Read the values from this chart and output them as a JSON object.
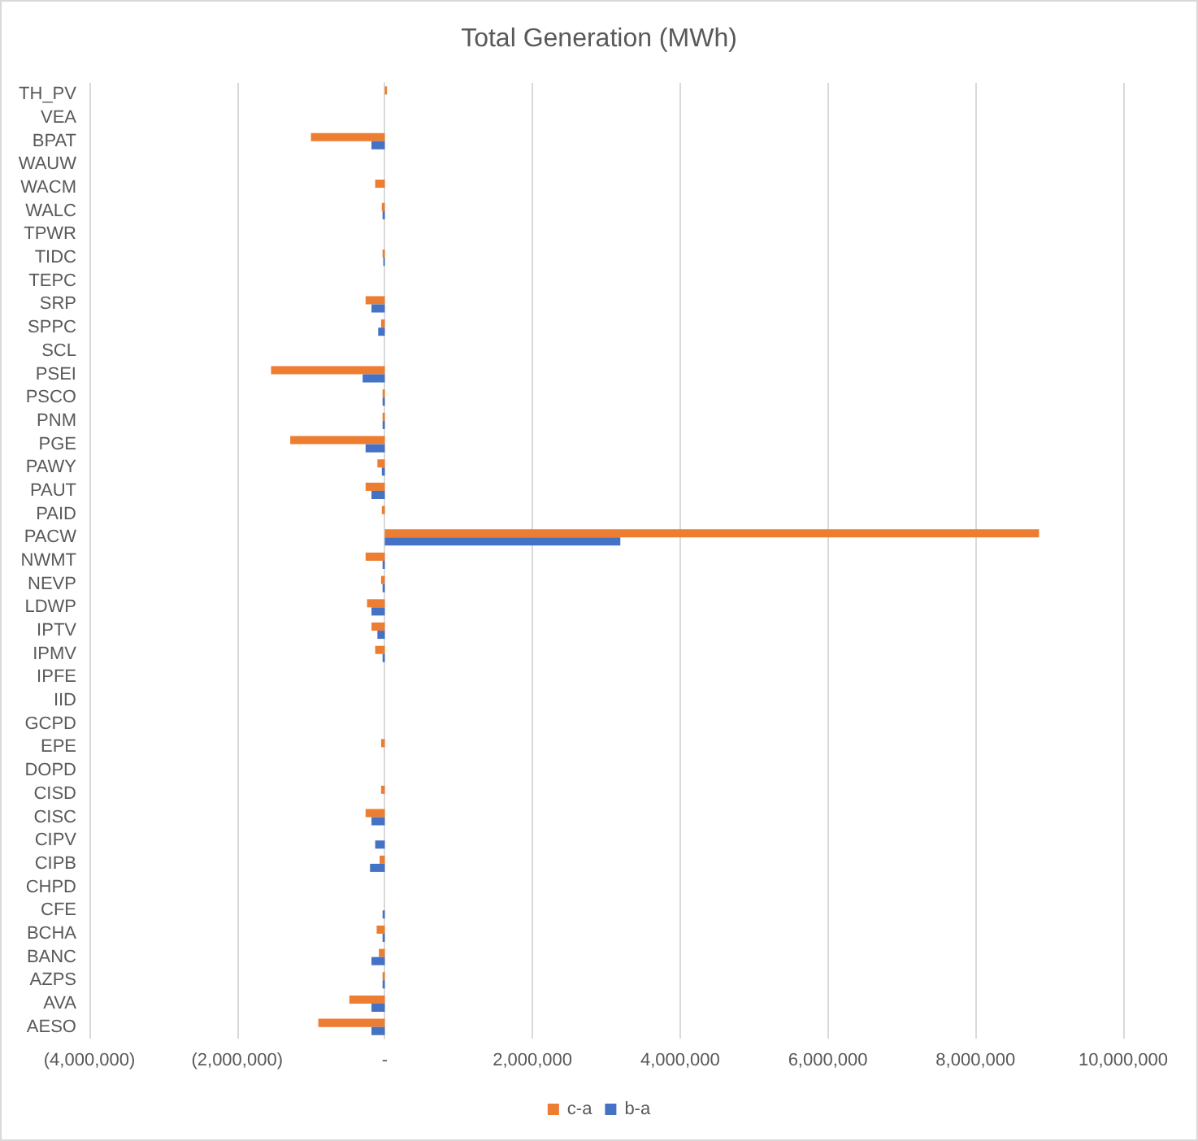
{
  "chart_data": {
    "type": "bar",
    "orientation": "horizontal",
    "title": "Total Generation (MWh)",
    "categories": [
      "TH_PV",
      "VEA",
      "BPAT",
      "WAUW",
      "WACM",
      "WALC",
      "TPWR",
      "TIDC",
      "TEPC",
      "SRP",
      "SPPC",
      "SCL",
      "PSEI",
      "PSCO",
      "PNM",
      "PGE",
      "PAWY",
      "PAUT",
      "PAID",
      "PACW",
      "NWMT",
      "NEVP",
      "LDWP",
      "IPTV",
      "IPMV",
      "IPFE",
      "IID",
      "GCPD",
      "EPE",
      "DOPD",
      "CISD",
      "CISC",
      "CIPV",
      "CIPB",
      "CHPD",
      "CFE",
      "BCHA",
      "BANC",
      "AZPS",
      "AVA",
      "AESO"
    ],
    "series": [
      {
        "name": "c-a",
        "color": "#ed7d31",
        "values": [
          30000,
          0,
          -1000000,
          0,
          -130000,
          -40000,
          0,
          -30000,
          0,
          -260000,
          -50000,
          0,
          -1540000,
          -30000,
          -30000,
          -1280000,
          -100000,
          -260000,
          -40000,
          8860000,
          -260000,
          -50000,
          -240000,
          -180000,
          -130000,
          0,
          0,
          0,
          -50000,
          0,
          -50000,
          -260000,
          0,
          -70000,
          0,
          0,
          -110000,
          -80000,
          -30000,
          -480000,
          -900000
        ]
      },
      {
        "name": "b-a",
        "color": "#4472c4",
        "values": [
          0,
          0,
          -180000,
          0,
          0,
          -30000,
          0,
          -20000,
          0,
          -180000,
          -90000,
          0,
          -300000,
          -30000,
          -30000,
          -260000,
          -40000,
          -180000,
          0,
          3190000,
          -30000,
          -30000,
          -180000,
          -100000,
          -30000,
          0,
          0,
          0,
          0,
          0,
          0,
          -180000,
          -130000,
          -200000,
          0,
          -30000,
          -30000,
          -180000,
          -30000,
          -180000,
          -180000
        ]
      }
    ],
    "xlim": [
      -4000000,
      10000000
    ],
    "xticks": [
      {
        "value": -4000000,
        "label": "(4,000,000)"
      },
      {
        "value": -2000000,
        "label": "(2,000,000)"
      },
      {
        "value": 0,
        "label": "-"
      },
      {
        "value": 2000000,
        "label": "2,000,000"
      },
      {
        "value": 4000000,
        "label": "4,000,000"
      },
      {
        "value": 6000000,
        "label": "6,000,000"
      },
      {
        "value": 8000000,
        "label": "8,000,000"
      },
      {
        "value": 10000000,
        "label": "10,000,000"
      }
    ],
    "grid": "x",
    "legend": "bottom"
  }
}
